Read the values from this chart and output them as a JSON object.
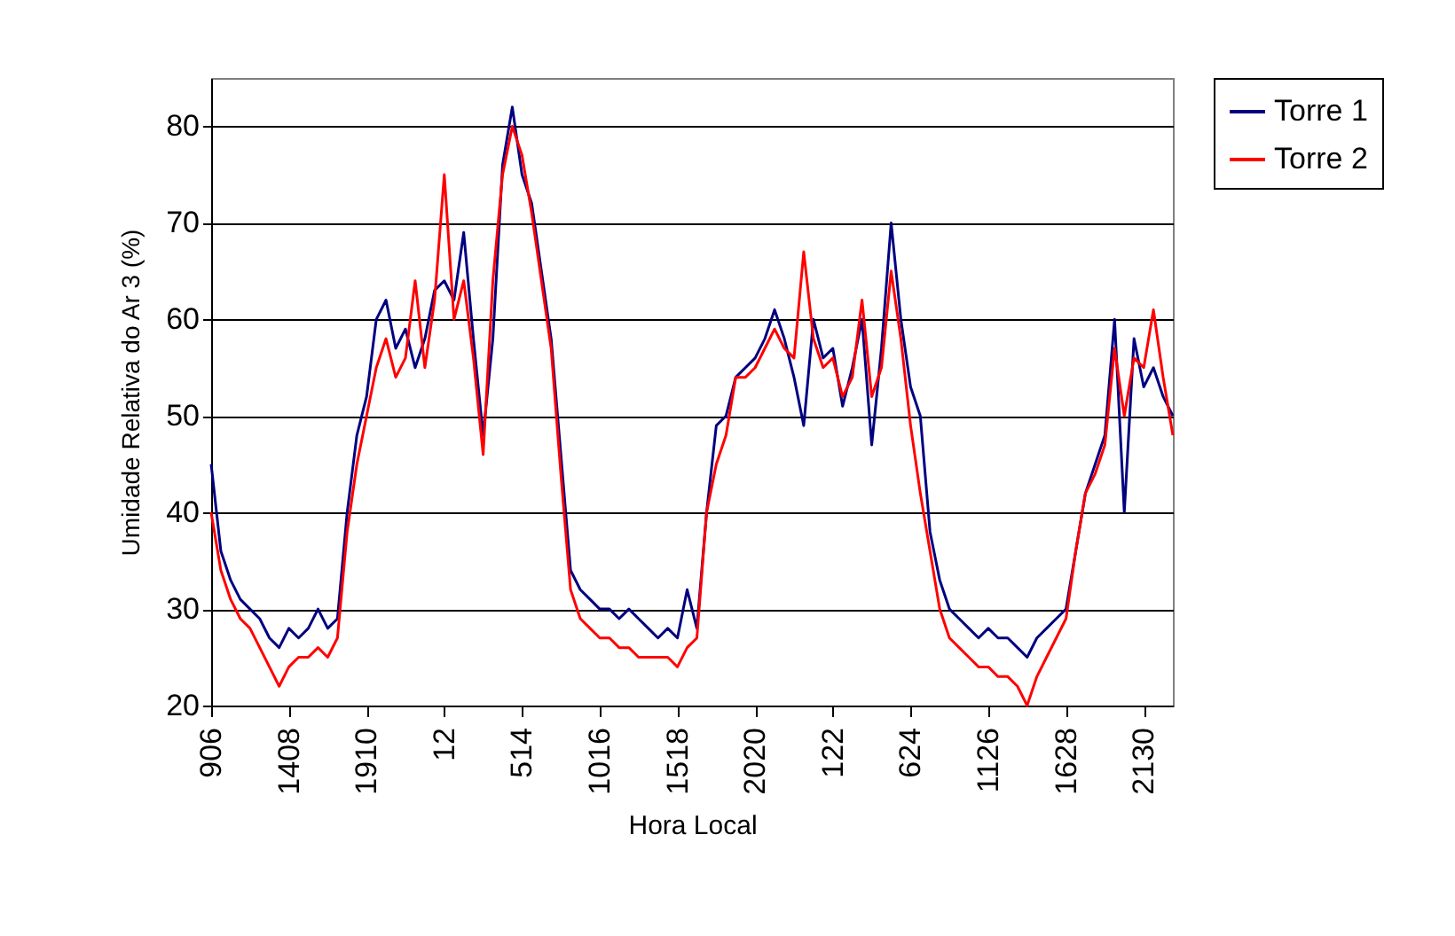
{
  "chart_data": {
    "type": "line",
    "xlabel": "Hora Local",
    "ylabel": "Umidade Relativa do Ar 3 (%)",
    "categories": [
      "906",
      null,
      null,
      null,
      null,
      null,
      null,
      null,
      "1408",
      null,
      null,
      null,
      null,
      null,
      null,
      null,
      "1910",
      null,
      null,
      null,
      null,
      null,
      null,
      null,
      "12",
      null,
      null,
      null,
      null,
      null,
      null,
      null,
      "514",
      null,
      null,
      null,
      null,
      null,
      null,
      null,
      "1016",
      null,
      null,
      null,
      null,
      null,
      null,
      null,
      "1518",
      null,
      null,
      null,
      null,
      null,
      null,
      null,
      "2020",
      null,
      null,
      null,
      null,
      null,
      null,
      null,
      "122",
      null,
      null,
      null,
      null,
      null,
      null,
      null,
      "624",
      null,
      null,
      null,
      null,
      null,
      null,
      null,
      "1126",
      null,
      null,
      null,
      null,
      null,
      null,
      null,
      "1628",
      null,
      null,
      null,
      null,
      null,
      null,
      null,
      "2130",
      null,
      null,
      null
    ],
    "series": [
      {
        "name": "Torre 1",
        "color": "#000080",
        "values": [
          45,
          36,
          33,
          31,
          30,
          29,
          27,
          26,
          28,
          27,
          28,
          30,
          28,
          29,
          40,
          48,
          52,
          60,
          62,
          57,
          59,
          55,
          58,
          63,
          64,
          62,
          69,
          58,
          48,
          58,
          76,
          82,
          75,
          72,
          65,
          58,
          46,
          34,
          32,
          31,
          30,
          30,
          29,
          30,
          29,
          28,
          27,
          28,
          27,
          32,
          28,
          40,
          49,
          50,
          54,
          55,
          56,
          58,
          61,
          58,
          54,
          49,
          60,
          56,
          57,
          51,
          55,
          60,
          47,
          57,
          70,
          60,
          53,
          50,
          38,
          33,
          30,
          29,
          28,
          27,
          28,
          27,
          27,
          26,
          25,
          27,
          28,
          29,
          30,
          36,
          42,
          45,
          48,
          60,
          40,
          58,
          53,
          55,
          52,
          50
        ]
      },
      {
        "name": "Torre 2",
        "color": "#ff0000",
        "values": [
          40,
          34,
          31,
          29,
          28,
          26,
          24,
          22,
          24,
          25,
          25,
          26,
          25,
          27,
          38,
          45,
          50,
          55,
          58,
          54,
          56,
          64,
          55,
          62,
          75,
          60,
          64,
          56,
          46,
          64,
          75,
          80,
          77,
          71,
          64,
          57,
          44,
          32,
          29,
          28,
          27,
          27,
          26,
          26,
          25,
          25,
          25,
          25,
          24,
          26,
          27,
          40,
          45,
          48,
          54,
          54,
          55,
          57,
          59,
          57,
          56,
          67,
          58,
          55,
          56,
          52,
          54,
          62,
          52,
          55,
          65,
          58,
          49,
          42,
          36,
          30,
          27,
          26,
          25,
          24,
          24,
          23,
          23,
          22,
          20,
          23,
          25,
          27,
          29,
          36,
          42,
          44,
          47,
          57,
          50,
          56,
          55,
          61,
          54,
          48
        ]
      }
    ],
    "ylim": [
      20,
      85
    ],
    "yticks": [
      20,
      30,
      40,
      50,
      60,
      70,
      80
    ],
    "grid": "y",
    "legend": "right"
  }
}
